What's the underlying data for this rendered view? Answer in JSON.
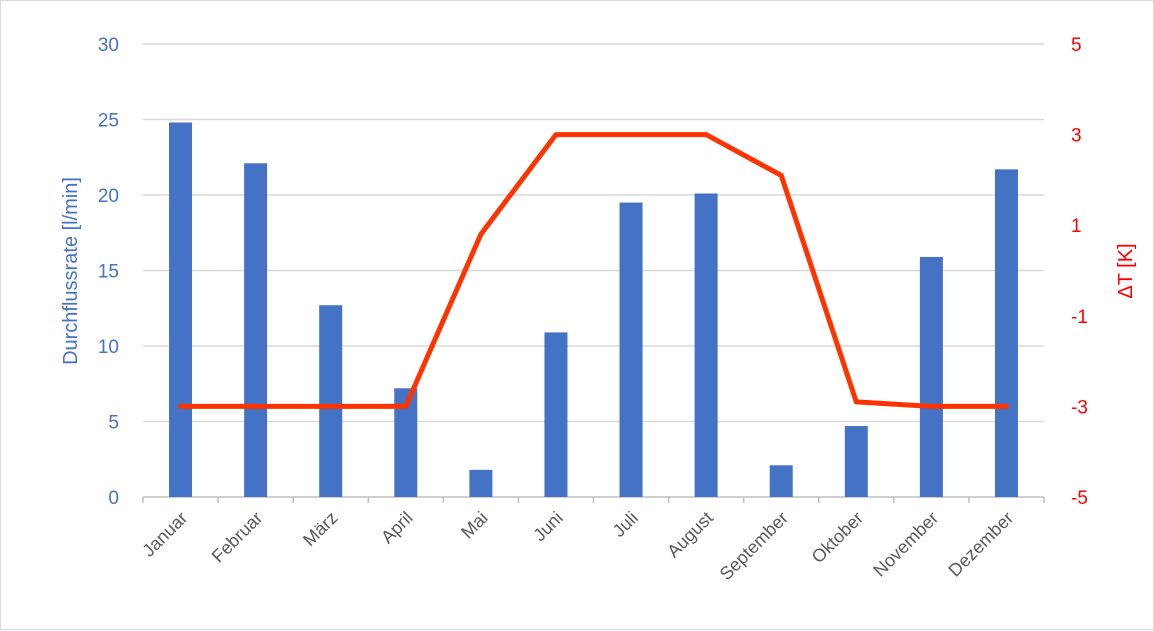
{
  "chart_data": {
    "type": "bar",
    "categories": [
      "Januar",
      "Februar",
      "März",
      "April",
      "Mai",
      "Juni",
      "Juli",
      "August",
      "September",
      "Oktober",
      "November",
      "Dezember"
    ],
    "series": [
      {
        "name": "",
        "type": "bar",
        "axis": "left",
        "color": "#4472c4",
        "values": [
          24.8,
          22.1,
          12.7,
          7.2,
          1.8,
          10.9,
          19.5,
          20.1,
          2.1,
          4.7,
          15.9,
          21.7
        ]
      },
      {
        "name": "",
        "type": "line",
        "axis": "right",
        "color": "#ff3300",
        "values": [
          -3.0,
          -3.0,
          -3.0,
          -3.0,
          0.8,
          3.0,
          3.0,
          3.0,
          2.1,
          -2.9,
          -3.0,
          -3.0
        ]
      }
    ],
    "ylabel": "Durchflussrate [l/min]",
    "y2label": "ΔT [K]",
    "ylim": [
      0,
      30
    ],
    "y2lim": [
      -5,
      5
    ],
    "yticks": [
      "0",
      "5",
      "10",
      "15",
      "20",
      "25",
      "30"
    ],
    "y2ticks": [
      "-5",
      "-3",
      "-1",
      "1",
      "3",
      "5"
    ],
    "grid": true,
    "legend": "none"
  }
}
